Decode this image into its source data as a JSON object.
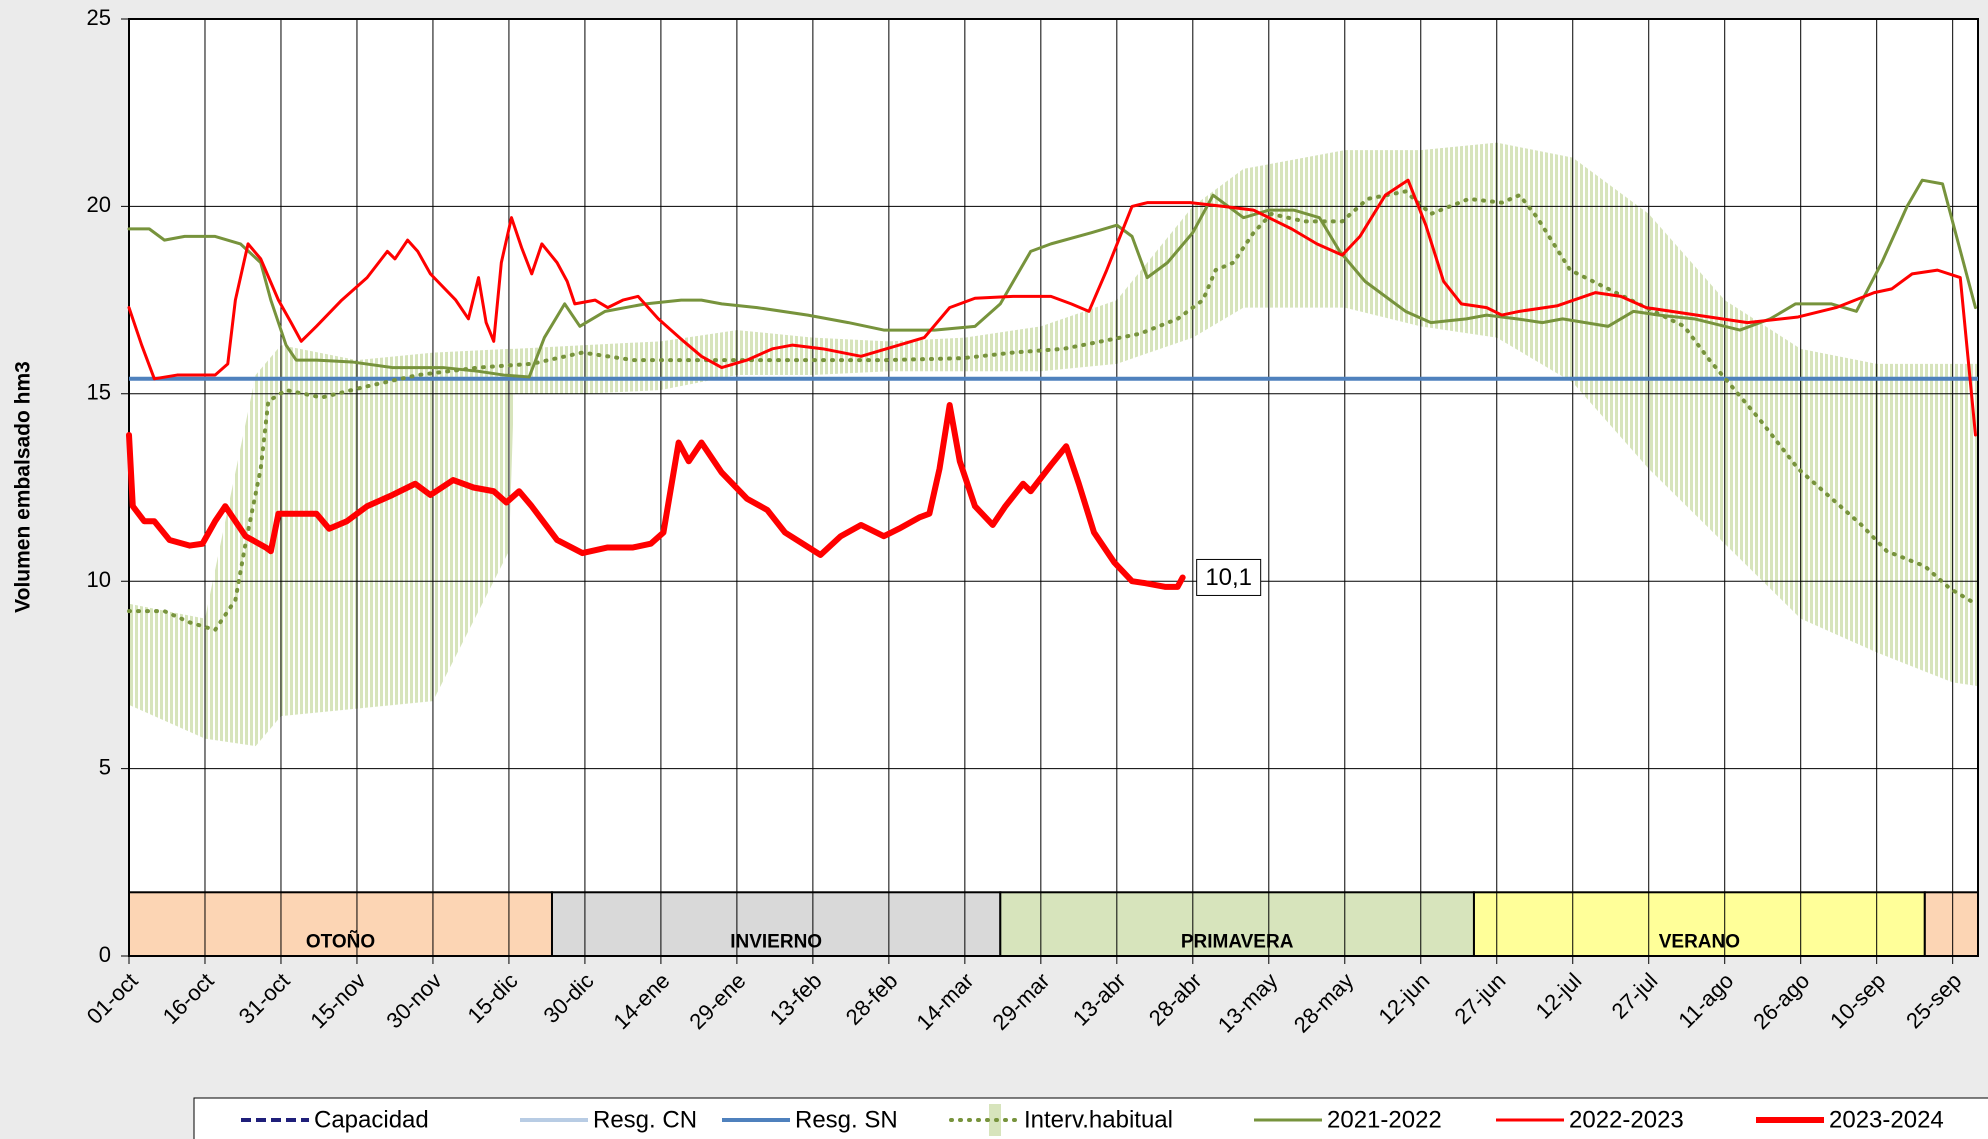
{
  "chart_data": {
    "type": "line",
    "y_axis_label": "Volumen embalsado hm3",
    "xlim": [
      0,
      365
    ],
    "ylim": [
      0,
      25
    ],
    "yticks": [
      0,
      5,
      10,
      15,
      20,
      25
    ],
    "grid": true,
    "xticks": [
      {
        "value": 0,
        "label": "01-oct"
      },
      {
        "value": 15,
        "label": "16-oct"
      },
      {
        "value": 30,
        "label": "31-oct"
      },
      {
        "value": 45,
        "label": "15-nov"
      },
      {
        "value": 60,
        "label": "30-nov"
      },
      {
        "value": 75,
        "label": "15-dic"
      },
      {
        "value": 90,
        "label": "30-dic"
      },
      {
        "value": 105,
        "label": "14-ene"
      },
      {
        "value": 120,
        "label": "29-ene"
      },
      {
        "value": 135,
        "label": "13-feb"
      },
      {
        "value": 150,
        "label": "28-feb"
      },
      {
        "value": 165,
        "label": "14-mar"
      },
      {
        "value": 180,
        "label": "29-mar"
      },
      {
        "value": 195,
        "label": "13-abr"
      },
      {
        "value": 210,
        "label": "28-abr"
      },
      {
        "value": 225,
        "label": "13-may"
      },
      {
        "value": 240,
        "label": "28-may"
      },
      {
        "value": 255,
        "label": "12-jun"
      },
      {
        "value": 270,
        "label": "27-jun"
      },
      {
        "value": 285,
        "label": "12-jul"
      },
      {
        "value": 300,
        "label": "27-jul"
      },
      {
        "value": 315,
        "label": "11-ago"
      },
      {
        "value": 330,
        "label": "26-ago"
      },
      {
        "value": 345,
        "label": "10-sep"
      },
      {
        "value": 360,
        "label": "25-sep"
      }
    ],
    "seasons": [
      {
        "name": "OTOÑO",
        "start": 0,
        "end": 83.5,
        "color": "#fcd5b4"
      },
      {
        "name": "INVIERNO",
        "start": 83.5,
        "end": 172,
        "color": "#d9d9d9"
      },
      {
        "name": "PRIMAVERA",
        "start": 172,
        "end": 265.5,
        "color": "#d7e4bc"
      },
      {
        "name": "VERANO",
        "start": 265.5,
        "end": 354.5,
        "color": "#ffff99"
      },
      {
        "start": 354.5,
        "end": 365,
        "color": "#fcd5b4"
      }
    ],
    "season_band_top": 1.7,
    "series": [
      {
        "name": "Capacidad",
        "color": "#1f1f7a",
        "style": "dashed"
      },
      {
        "name": "Resg. CN",
        "color": "#b8cce4",
        "style": "solid"
      },
      {
        "name": "Resg. SN",
        "color": "#4f81bd",
        "style": "hline",
        "value": 15.4
      },
      {
        "name": "Interv.habitual",
        "color": "#77933c",
        "style": "dotted",
        "x": [
          0,
          7,
          12,
          17,
          21,
          23,
          26,
          27.5,
          31,
          38,
          47,
          57,
          69,
          79.5,
          89.5,
          99.5,
          124.5,
          149.5,
          164.5,
          174.5,
          184.5,
          192,
          199.5,
          207,
          212,
          214.5,
          218,
          222,
          225.5,
          232,
          239.5,
          244.5,
          252,
          257,
          264.5,
          271,
          274.5,
          278,
          284.5,
          292,
          299.5,
          307,
          312,
          317,
          322,
          329.5,
          334.5,
          342,
          347,
          354.5,
          359.5,
          364.5
        ],
        "values": [
          9.2,
          9.2,
          8.9,
          8.7,
          9.5,
          11.0,
          13.0,
          14.8,
          15.1,
          14.9,
          15.2,
          15.5,
          15.7,
          15.8,
          16.1,
          15.9,
          15.9,
          15.9,
          15.95,
          16.1,
          16.2,
          16.4,
          16.6,
          17.0,
          17.5,
          18.3,
          18.5,
          19.3,
          19.8,
          19.6,
          19.6,
          20.2,
          20.4,
          19.8,
          20.2,
          20.1,
          20.3,
          19.7,
          18.3,
          17.8,
          17.3,
          16.8,
          15.9,
          15.1,
          14.3,
          13.0,
          12.4,
          11.5,
          10.8,
          10.4,
          9.8,
          9.4
        ],
        "band": {
          "color": "#d7e4bc",
          "x": [
            0,
            15,
            25,
            30,
            45,
            60,
            75,
            76,
            90,
            105,
            120,
            135,
            150,
            165,
            180,
            195,
            210,
            220,
            240,
            255,
            270,
            285,
            300,
            315,
            330,
            345,
            360,
            365
          ],
          "low": [
            6.7,
            5.8,
            5.6,
            6.4,
            6.6,
            6.8,
            10.8,
            15.0,
            15.0,
            15.1,
            15.5,
            15.5,
            15.6,
            15.6,
            15.6,
            15.8,
            16.5,
            17.3,
            17.3,
            16.8,
            16.5,
            15.3,
            13.0,
            11.0,
            9.0,
            8.1,
            7.3,
            7.2
          ],
          "high": [
            9.4,
            9.0,
            15.5,
            16.3,
            15.9,
            16.1,
            16.2,
            16.2,
            16.3,
            16.4,
            16.7,
            16.5,
            16.4,
            16.5,
            16.8,
            17.5,
            20.0,
            21.0,
            21.5,
            21.5,
            21.7,
            21.3,
            19.8,
            17.5,
            16.2,
            15.8,
            15.8,
            15.8
          ]
        }
      },
      {
        "name": "2021-2022",
        "color": "#77933c",
        "style": "solid",
        "width": 3,
        "x": [
          0,
          4,
          7,
          11,
          17,
          22,
          26,
          28,
          31,
          33,
          37,
          44,
          52,
          62,
          69,
          74,
          79,
          82,
          86,
          89,
          94,
          102,
          109,
          113,
          117,
          124,
          134,
          142,
          149,
          159,
          167,
          172,
          178,
          182,
          190,
          195,
          198,
          201,
          205,
          210,
          214,
          220,
          225,
          230,
          235,
          239,
          244,
          252,
          257,
          264,
          268,
          274,
          279,
          283,
          292,
          297,
          302,
          309,
          318,
          324,
          329,
          336,
          341,
          346,
          351,
          354,
          358,
          364.5
        ],
        "values": [
          19.4,
          19.4,
          19.1,
          19.2,
          19.2,
          19.0,
          18.5,
          17.5,
          16.3,
          15.9,
          15.9,
          15.85,
          15.7,
          15.7,
          15.6,
          15.5,
          15.45,
          16.5,
          17.4,
          16.8,
          17.2,
          17.4,
          17.5,
          17.5,
          17.4,
          17.3,
          17.1,
          16.9,
          16.7,
          16.7,
          16.8,
          17.4,
          18.8,
          19.0,
          19.3,
          19.5,
          19.2,
          18.1,
          18.5,
          19.3,
          20.3,
          19.7,
          19.9,
          19.9,
          19.7,
          18.8,
          18.0,
          17.2,
          16.9,
          17.0,
          17.1,
          17.0,
          16.9,
          17.0,
          16.8,
          17.2,
          17.1,
          17.0,
          16.7,
          17.0,
          17.4,
          17.4,
          17.2,
          18.5,
          20.0,
          20.7,
          20.6,
          17.3
        ]
      },
      {
        "name": "2022-2023",
        "color": "#ff0000",
        "style": "solid",
        "width": 3,
        "x": [
          0,
          2.5,
          5,
          9.5,
          17,
          19.5,
          21,
          23.5,
          26,
          29.5,
          32,
          34,
          37,
          42,
          47,
          51,
          52.5,
          55,
          57,
          59.5,
          64.5,
          67,
          69,
          70.5,
          72,
          73.5,
          75.5,
          77.5,
          79.5,
          81.5,
          84.5,
          86.5,
          88,
          92,
          94.5,
          97.5,
          100.5,
          104.5,
          109.5,
          113,
          117,
          122,
          127,
          131,
          137,
          144.5,
          149.5,
          157,
          162,
          167,
          174.5,
          182,
          186,
          189.5,
          193,
          198,
          201,
          209.5,
          216,
          222,
          229.5,
          234.5,
          239.5,
          243,
          248,
          252.5,
          256,
          259.5,
          263,
          268,
          271,
          274.5,
          282,
          289.5,
          294.5,
          299.5,
          309.5,
          319.5,
          329.5,
          337,
          344.5,
          348,
          352,
          357,
          361.5,
          363,
          364.5
        ],
        "values": [
          17.3,
          16.3,
          15.4,
          15.5,
          15.5,
          15.8,
          17.5,
          19.0,
          18.6,
          17.5,
          16.9,
          16.4,
          16.8,
          17.5,
          18.1,
          18.8,
          18.6,
          19.1,
          18.8,
          18.2,
          17.5,
          17.0,
          18.1,
          16.9,
          16.4,
          18.5,
          19.7,
          18.9,
          18.2,
          19.0,
          18.5,
          18.0,
          17.4,
          17.5,
          17.3,
          17.5,
          17.6,
          17.0,
          16.4,
          16.0,
          15.7,
          15.9,
          16.2,
          16.3,
          16.2,
          16.0,
          16.2,
          16.5,
          17.3,
          17.55,
          17.6,
          17.6,
          17.4,
          17.2,
          18.3,
          20.0,
          20.1,
          20.1,
          20.0,
          19.9,
          19.4,
          19.0,
          18.7,
          19.2,
          20.3,
          20.7,
          19.5,
          18.0,
          17.4,
          17.3,
          17.1,
          17.2,
          17.35,
          17.7,
          17.6,
          17.3,
          17.1,
          16.9,
          17.05,
          17.3,
          17.7,
          17.8,
          18.2,
          18.3,
          18.1,
          16.0,
          13.9
        ]
      },
      {
        "name": "2023-2024",
        "color": "#ff0000",
        "style": "solid",
        "width": 6,
        "x": [
          0,
          0.75,
          3,
          5,
          8,
          12,
          14.5,
          17,
          19,
          21,
          23,
          27,
          28,
          29.5,
          32,
          37,
          39.5,
          43,
          47,
          52,
          56.5,
          59.5,
          64,
          68,
          72,
          74.5,
          77,
          79.5,
          84.5,
          89.5,
          94.5,
          99.5,
          103,
          105.5,
          108.5,
          110.5,
          113,
          117,
          122,
          126,
          129.5,
          133,
          136.5,
          140.5,
          144.5,
          149,
          152,
          156,
          158,
          160,
          162,
          164,
          167,
          170.5,
          173,
          176.5,
          178,
          182,
          185,
          187.5,
          190.5,
          194.5,
          198,
          200.5,
          204.5,
          207,
          208
        ],
        "values": [
          13.9,
          12.0,
          11.6,
          11.6,
          11.1,
          10.95,
          11.0,
          11.6,
          12.0,
          11.6,
          11.2,
          10.9,
          10.8,
          11.8,
          11.8,
          11.8,
          11.4,
          11.6,
          12.0,
          12.3,
          12.6,
          12.3,
          12.7,
          12.5,
          12.4,
          12.1,
          12.4,
          12.0,
          11.1,
          10.75,
          10.9,
          10.9,
          11.0,
          11.3,
          13.7,
          13.2,
          13.7,
          12.9,
          12.2,
          11.9,
          11.3,
          11.0,
          10.7,
          11.2,
          11.5,
          11.2,
          11.4,
          11.7,
          11.8,
          13.0,
          14.7,
          13.2,
          12.0,
          11.5,
          12.0,
          12.6,
          12.4,
          13.1,
          13.6,
          12.6,
          11.3,
          10.5,
          10.0,
          9.95,
          9.85,
          9.85,
          10.1
        ],
        "end_label": "10,1"
      }
    ]
  }
}
